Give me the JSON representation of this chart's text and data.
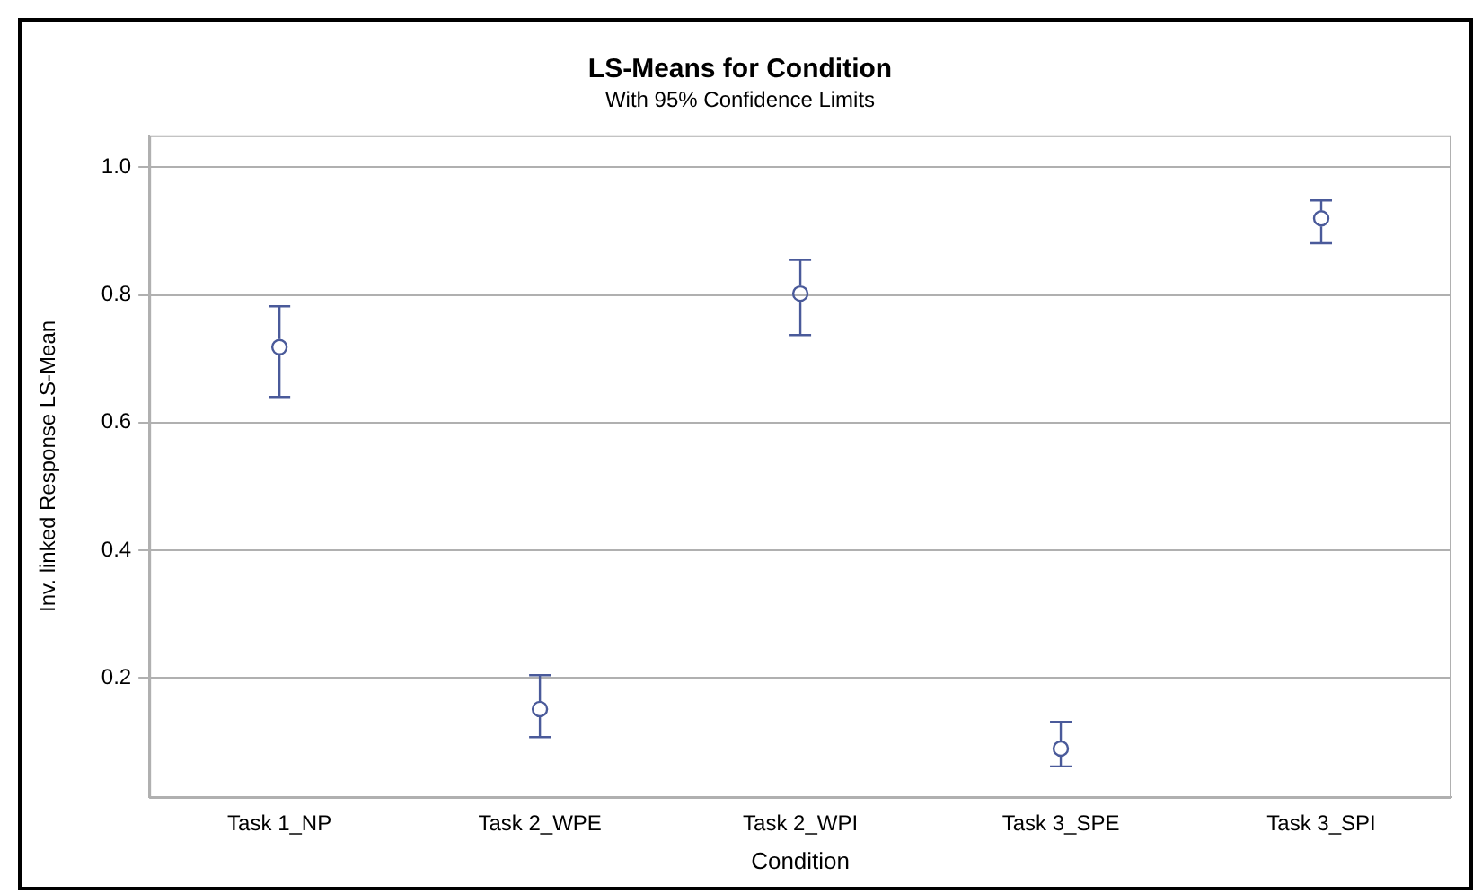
{
  "chart_data": {
    "type": "scatter",
    "title": "LS-Means for Condition",
    "subtitle": "With 95% Confidence Limits",
    "xlabel": "Condition",
    "ylabel": "Inv. linked Response LS-Mean",
    "categories": [
      "Task 1_NP",
      "Task 2_WPE",
      "Task 2_WPI",
      "Task 3_SPE",
      "Task 3_SPI"
    ],
    "series": [
      {
        "color": "#4a5a9a",
        "values": [
          0.718,
          0.151,
          0.802,
          0.089,
          0.92
        ],
        "errors": [
          [
            0.64,
            0.782
          ],
          [
            0.107,
            0.204
          ],
          [
            0.737,
            0.855
          ],
          [
            0.061,
            0.131
          ],
          [
            0.881,
            0.948
          ]
        ]
      }
    ],
    "ylim": [
      0.013,
      1.05
    ],
    "yticks": [
      0.2,
      0.4,
      0.6,
      0.8,
      {
        "value": 1.0,
        "label": "1.0"
      }
    ],
    "grid": "y",
    "legend": false,
    "marker": "circle"
  }
}
